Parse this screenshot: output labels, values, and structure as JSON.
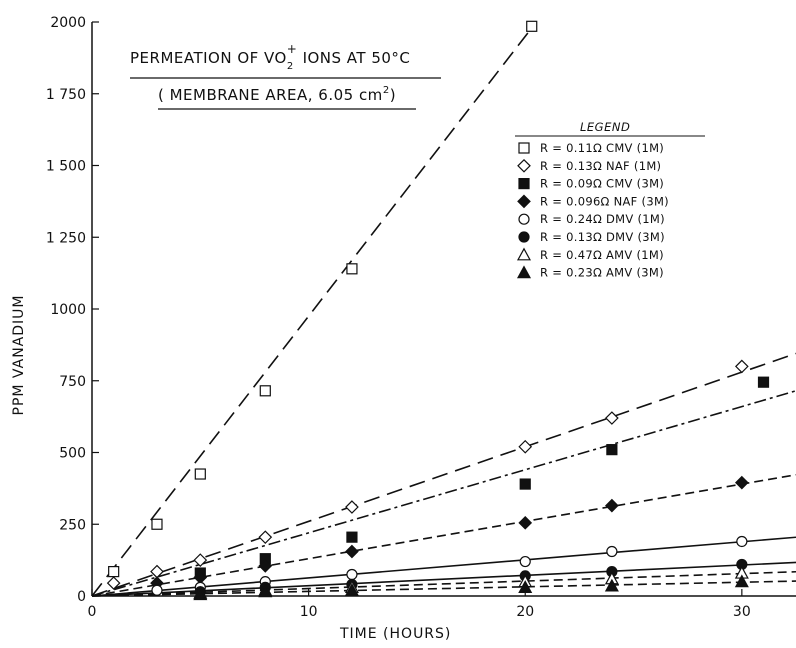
{
  "chart_data": {
    "type": "scatter",
    "title_line1_prefix": "PERMEATION OF VO",
    "title_sub": "2",
    "title_sup": "+",
    "title_line1_suffix": " IONS AT 50°C",
    "title_line2_prefix": "( MEMBRANE AREA, 6.05 cm",
    "title_line2_sup": "2",
    "title_line2_suffix": ")",
    "xlabel": "TIME  (HOURS)",
    "ylabel": "PPM  VANADIUM",
    "xlim": [
      0,
      32.5
    ],
    "ylim": [
      0,
      2000
    ],
    "x_ticks": [
      0,
      10,
      20,
      30
    ],
    "x_tick_labels": [
      "0",
      "10",
      "20",
      "30"
    ],
    "y_ticks": [
      0,
      250,
      500,
      750,
      1000,
      1250,
      1500,
      1750,
      2000
    ],
    "y_tick_labels": [
      "0",
      "250",
      "500",
      "750",
      "1000",
      "1 250",
      "1 500",
      "1 750",
      "2000"
    ],
    "legend_title": "LEGEND",
    "legend_placement": "top-right",
    "grid": false,
    "series": [
      {
        "name": "R = 0.11Ω  CMV (1M)",
        "marker": "square-open",
        "dash": "long-dash",
        "x": [
          1,
          3,
          5,
          8,
          12,
          20.3
        ],
        "y": [
          85,
          250,
          425,
          715,
          1140,
          1985
        ],
        "fit_slope": 97.5
      },
      {
        "name": "R = 0.13Ω  NAF (1M)",
        "marker": "diamond-open",
        "dash": "long-dash",
        "x": [
          1,
          3,
          5,
          8,
          12,
          20,
          24,
          30
        ],
        "y": [
          45,
          85,
          125,
          205,
          310,
          520,
          620,
          800
        ],
        "fit_slope": 26.0
      },
      {
        "name": "R = 0.09Ω  CMV (3M)",
        "marker": "square-filled",
        "dash": "dash-dot",
        "x": [
          5,
          8,
          12,
          20,
          24,
          31
        ],
        "y": [
          80,
          130,
          205,
          390,
          510,
          745
        ],
        "fit_slope": 22.0
      },
      {
        "name": "R = 0.096Ω  NAF (3M)",
        "marker": "diamond-filled",
        "dash": "dash",
        "x": [
          3,
          5,
          8,
          12,
          20,
          24,
          30
        ],
        "y": [
          45,
          65,
          105,
          155,
          255,
          315,
          395
        ],
        "fit_slope": 13.0
      },
      {
        "name": "R = 0.24Ω  DMV (1M)",
        "marker": "circle-open",
        "dash": "solid",
        "x": [
          3,
          5,
          8,
          12,
          20,
          24,
          30
        ],
        "y": [
          20,
          30,
          50,
          75,
          120,
          155,
          190
        ],
        "fit_slope": 6.3
      },
      {
        "name": "R = 0.13Ω  DMV (3M)",
        "marker": "circle-filled",
        "dash": "solid",
        "x": [
          5,
          8,
          12,
          20,
          24,
          30
        ],
        "y": [
          15,
          30,
          40,
          70,
          85,
          110
        ],
        "fit_slope": 3.6
      },
      {
        "name": "R = 0.47Ω  AMV (1M)",
        "marker": "triangle-open",
        "dash": "dash",
        "x": [
          5,
          8,
          12,
          20,
          24,
          30
        ],
        "y": [
          10,
          20,
          30,
          50,
          60,
          80
        ],
        "fit_slope": 2.6
      },
      {
        "name": "R = 0.23Ω  AMV (3M)",
        "marker": "triangle-filled",
        "dash": "dash",
        "x": [
          5,
          8,
          12,
          20,
          24,
          30
        ],
        "y": [
          5,
          15,
          20,
          30,
          35,
          50
        ],
        "fit_slope": 1.6
      }
    ]
  }
}
